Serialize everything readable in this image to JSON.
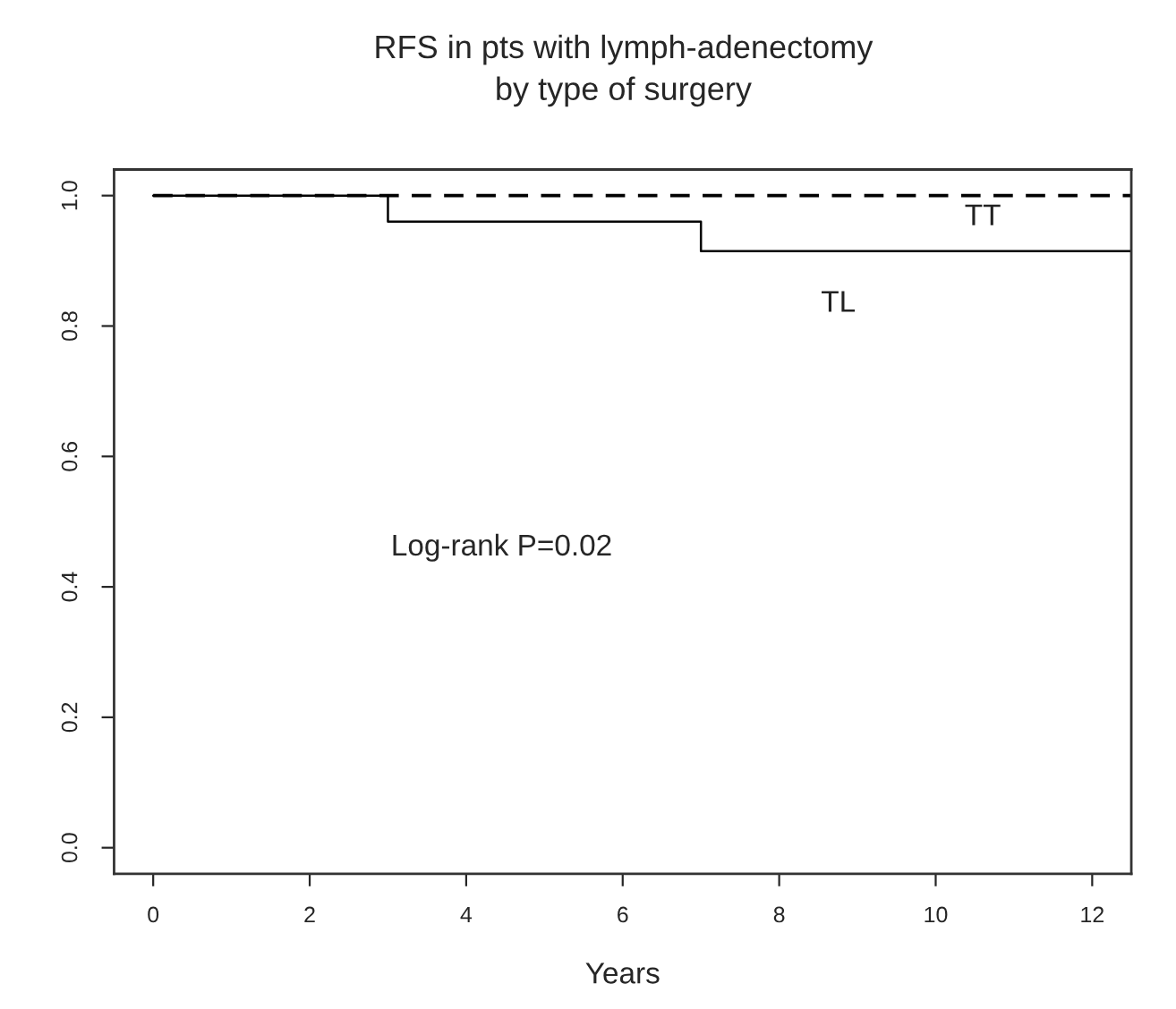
{
  "chart_data": {
    "type": "step",
    "title": "RFS in pts with lymph-adenectomy\nby type of surgery",
    "xlabel": "Years",
    "series": [
      {
        "name": "TT",
        "color": "#000000",
        "line_style": "dashed",
        "x": [
          0,
          12.5
        ],
        "values": [
          1.0,
          1.0
        ]
      },
      {
        "name": "TL",
        "color": "#000000",
        "line_style": "solid",
        "x": [
          0,
          3,
          7,
          12.5
        ],
        "values": [
          1.0,
          0.96,
          0.915,
          0.915
        ]
      }
    ],
    "annotations": [
      "Log-rank P=0.02"
    ],
    "xlim": [
      -0.5,
      12.5
    ],
    "ylim": [
      -0.04,
      1.04
    ],
    "xticks": [
      0,
      2,
      4,
      6,
      8,
      10,
      12
    ],
    "yticks": [
      {
        "value": 0,
        "label": "0.0"
      },
      {
        "value": 0.2,
        "label": "0.2"
      },
      {
        "value": 0.4,
        "label": "0.4"
      },
      {
        "value": 0.6,
        "label": "0.6"
      },
      {
        "value": 0.8,
        "label": "0.8"
      },
      {
        "value": 1,
        "label": "1.0"
      }
    ],
    "grid": false,
    "legend": false
  }
}
